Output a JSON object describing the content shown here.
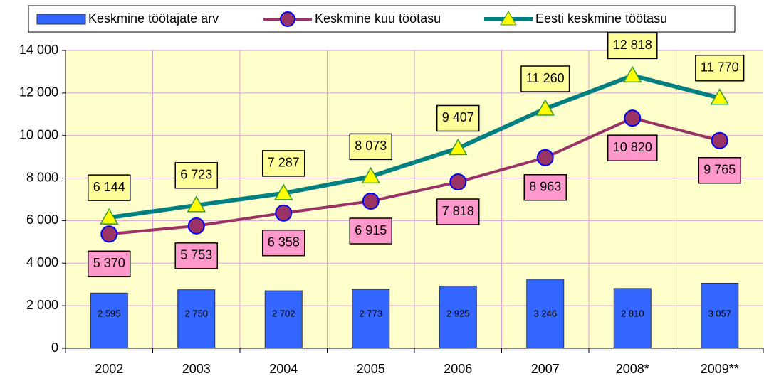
{
  "chart_data": {
    "type": "bar-line",
    "categories": [
      "2002",
      "2003",
      "2004",
      "2005",
      "2006",
      "2007",
      "2008*",
      "2009**"
    ],
    "series": [
      {
        "name": "Keskmine töötajate arv",
        "type": "bar",
        "color": "#3366ff",
        "values": [
          2595,
          2750,
          2702,
          2773,
          2925,
          3246,
          2810,
          3057
        ],
        "value_labels": [
          "2 595",
          "2 750",
          "2 702",
          "2 773",
          "2 925",
          "3 246",
          "2 810",
          "3 057"
        ]
      },
      {
        "name": "Keskmine kuu töötasu",
        "type": "line",
        "color": "#993366",
        "values": [
          5370,
          5753,
          6358,
          6915,
          7818,
          8963,
          10820,
          9765
        ],
        "value_labels": [
          "5 370",
          "5 753",
          "6 358",
          "6 915",
          "7 818",
          "8 963",
          "10 820",
          "9 765"
        ]
      },
      {
        "name": "Eesti keskmine töötasu",
        "type": "line",
        "color": "#008080",
        "values": [
          6144,
          6723,
          7287,
          8073,
          9407,
          11260,
          12818,
          11770
        ],
        "value_labels": [
          "6 144",
          "6 723",
          "7 287",
          "8 073",
          "9 407",
          "11 260",
          "12 818",
          "11 770"
        ]
      }
    ],
    "ylim": [
      0,
      14000
    ],
    "yticks": [
      0,
      {
        "value": 2000,
        "label": "2 000"
      },
      {
        "value": 4000,
        "label": "4 000"
      },
      {
        "value": 6000,
        "label": "6 000"
      },
      {
        "value": 8000,
        "label": "8 000"
      },
      {
        "value": 10000,
        "label": "10 000"
      },
      {
        "value": 12000,
        "label": "12 000"
      },
      {
        "value": 14000,
        "label": "14 000"
      }
    ],
    "grid": true
  }
}
